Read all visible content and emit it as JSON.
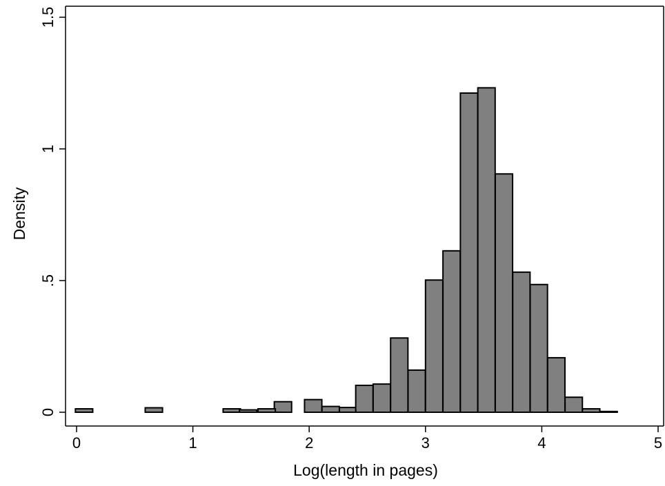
{
  "chart_data": {
    "type": "bar",
    "title": "",
    "xlabel": "Log(length in pages)",
    "ylabel": "Density",
    "xlim": [
      -0.1,
      5.05
    ],
    "ylim": [
      0,
      1.5
    ],
    "xticks": [
      0,
      1,
      2,
      3,
      4,
      5
    ],
    "xtick_labels": [
      "0",
      "1",
      "2",
      "3",
      "4",
      "5"
    ],
    "yticks": [
      0,
      0.5,
      1,
      1.5
    ],
    "ytick_labels": [
      "0",
      ".5",
      "1",
      "1.5"
    ],
    "grid": false,
    "bar_color": "#808080",
    "bar_edge_color": "#000000",
    "bin_width": 0.149,
    "bins": [
      {
        "left": -0.01,
        "density": 0.013
      },
      {
        "left": 0.59,
        "density": 0.017
      },
      {
        "left": 1.26,
        "density": 0.013
      },
      {
        "left": 1.4,
        "density": 0.009
      },
      {
        "left": 1.7,
        "density": 0.04
      },
      {
        "left": 1.56,
        "density": 0.013
      },
      {
        "left": 1.7,
        "density": 0.04
      },
      {
        "left": 1.96,
        "density": 0.048
      },
      {
        "left": 2.11,
        "density": 0.022
      },
      {
        "left": 2.26,
        "density": 0.018
      },
      {
        "left": 2.4,
        "density": 0.102
      },
      {
        "left": 2.55,
        "density": 0.107
      },
      {
        "left": 2.7,
        "density": 0.282
      },
      {
        "left": 2.85,
        "density": 0.16
      },
      {
        "left": 3.0,
        "density": 0.502
      },
      {
        "left": 3.15,
        "density": 0.613
      },
      {
        "left": 3.3,
        "density": 1.212
      },
      {
        "left": 3.45,
        "density": 1.232
      },
      {
        "left": 3.6,
        "density": 0.905
      },
      {
        "left": 3.75,
        "density": 0.532
      },
      {
        "left": 3.9,
        "density": 0.485
      },
      {
        "left": 4.05,
        "density": 0.207
      },
      {
        "left": 4.2,
        "density": 0.057
      },
      {
        "left": 4.35,
        "density": 0.013
      },
      {
        "left": 4.5,
        "density": 0.003
      }
    ]
  }
}
